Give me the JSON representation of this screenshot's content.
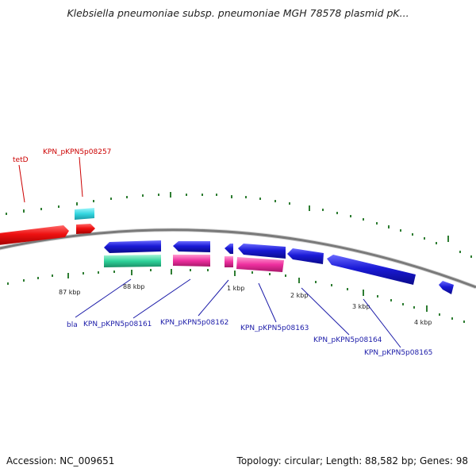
{
  "title": "Klebsiella pneumoniae subsp. pneumoniae MGH 78578 plasmid pK...",
  "footer": {
    "accession": "Accession: NC_009651",
    "summary": "Topology: circular; Length: 88,582 bp; Genes: 98"
  },
  "colors": {
    "backbone": "#8c8c8c",
    "ticks": "#2e7d32",
    "forward_red": "#ee1111",
    "forward_cyan": "#33d6e0",
    "reverse_blue": "#1a1ad6",
    "green_feature": "#2ed39a",
    "magenta_feature": "#ee2f9f",
    "label_red": "#cc0000",
    "label_blue": "#1a1aa8"
  },
  "scale_labels": [
    "87 kbp",
    "88 kbp",
    "1 kbp",
    "2 kbp",
    "3 kbp",
    "4 kbp"
  ],
  "gene_labels_top": [
    "tetD",
    "KPN_pKPN5p08257"
  ],
  "gene_labels_bottom": [
    "bla",
    "KPN_pKPN5p08161",
    "KPN_pKPN5p08162",
    "KPN_pKPN5p08163",
    "KPN_pKPN5p08164",
    "KPN_pKPN5p08165"
  ]
}
